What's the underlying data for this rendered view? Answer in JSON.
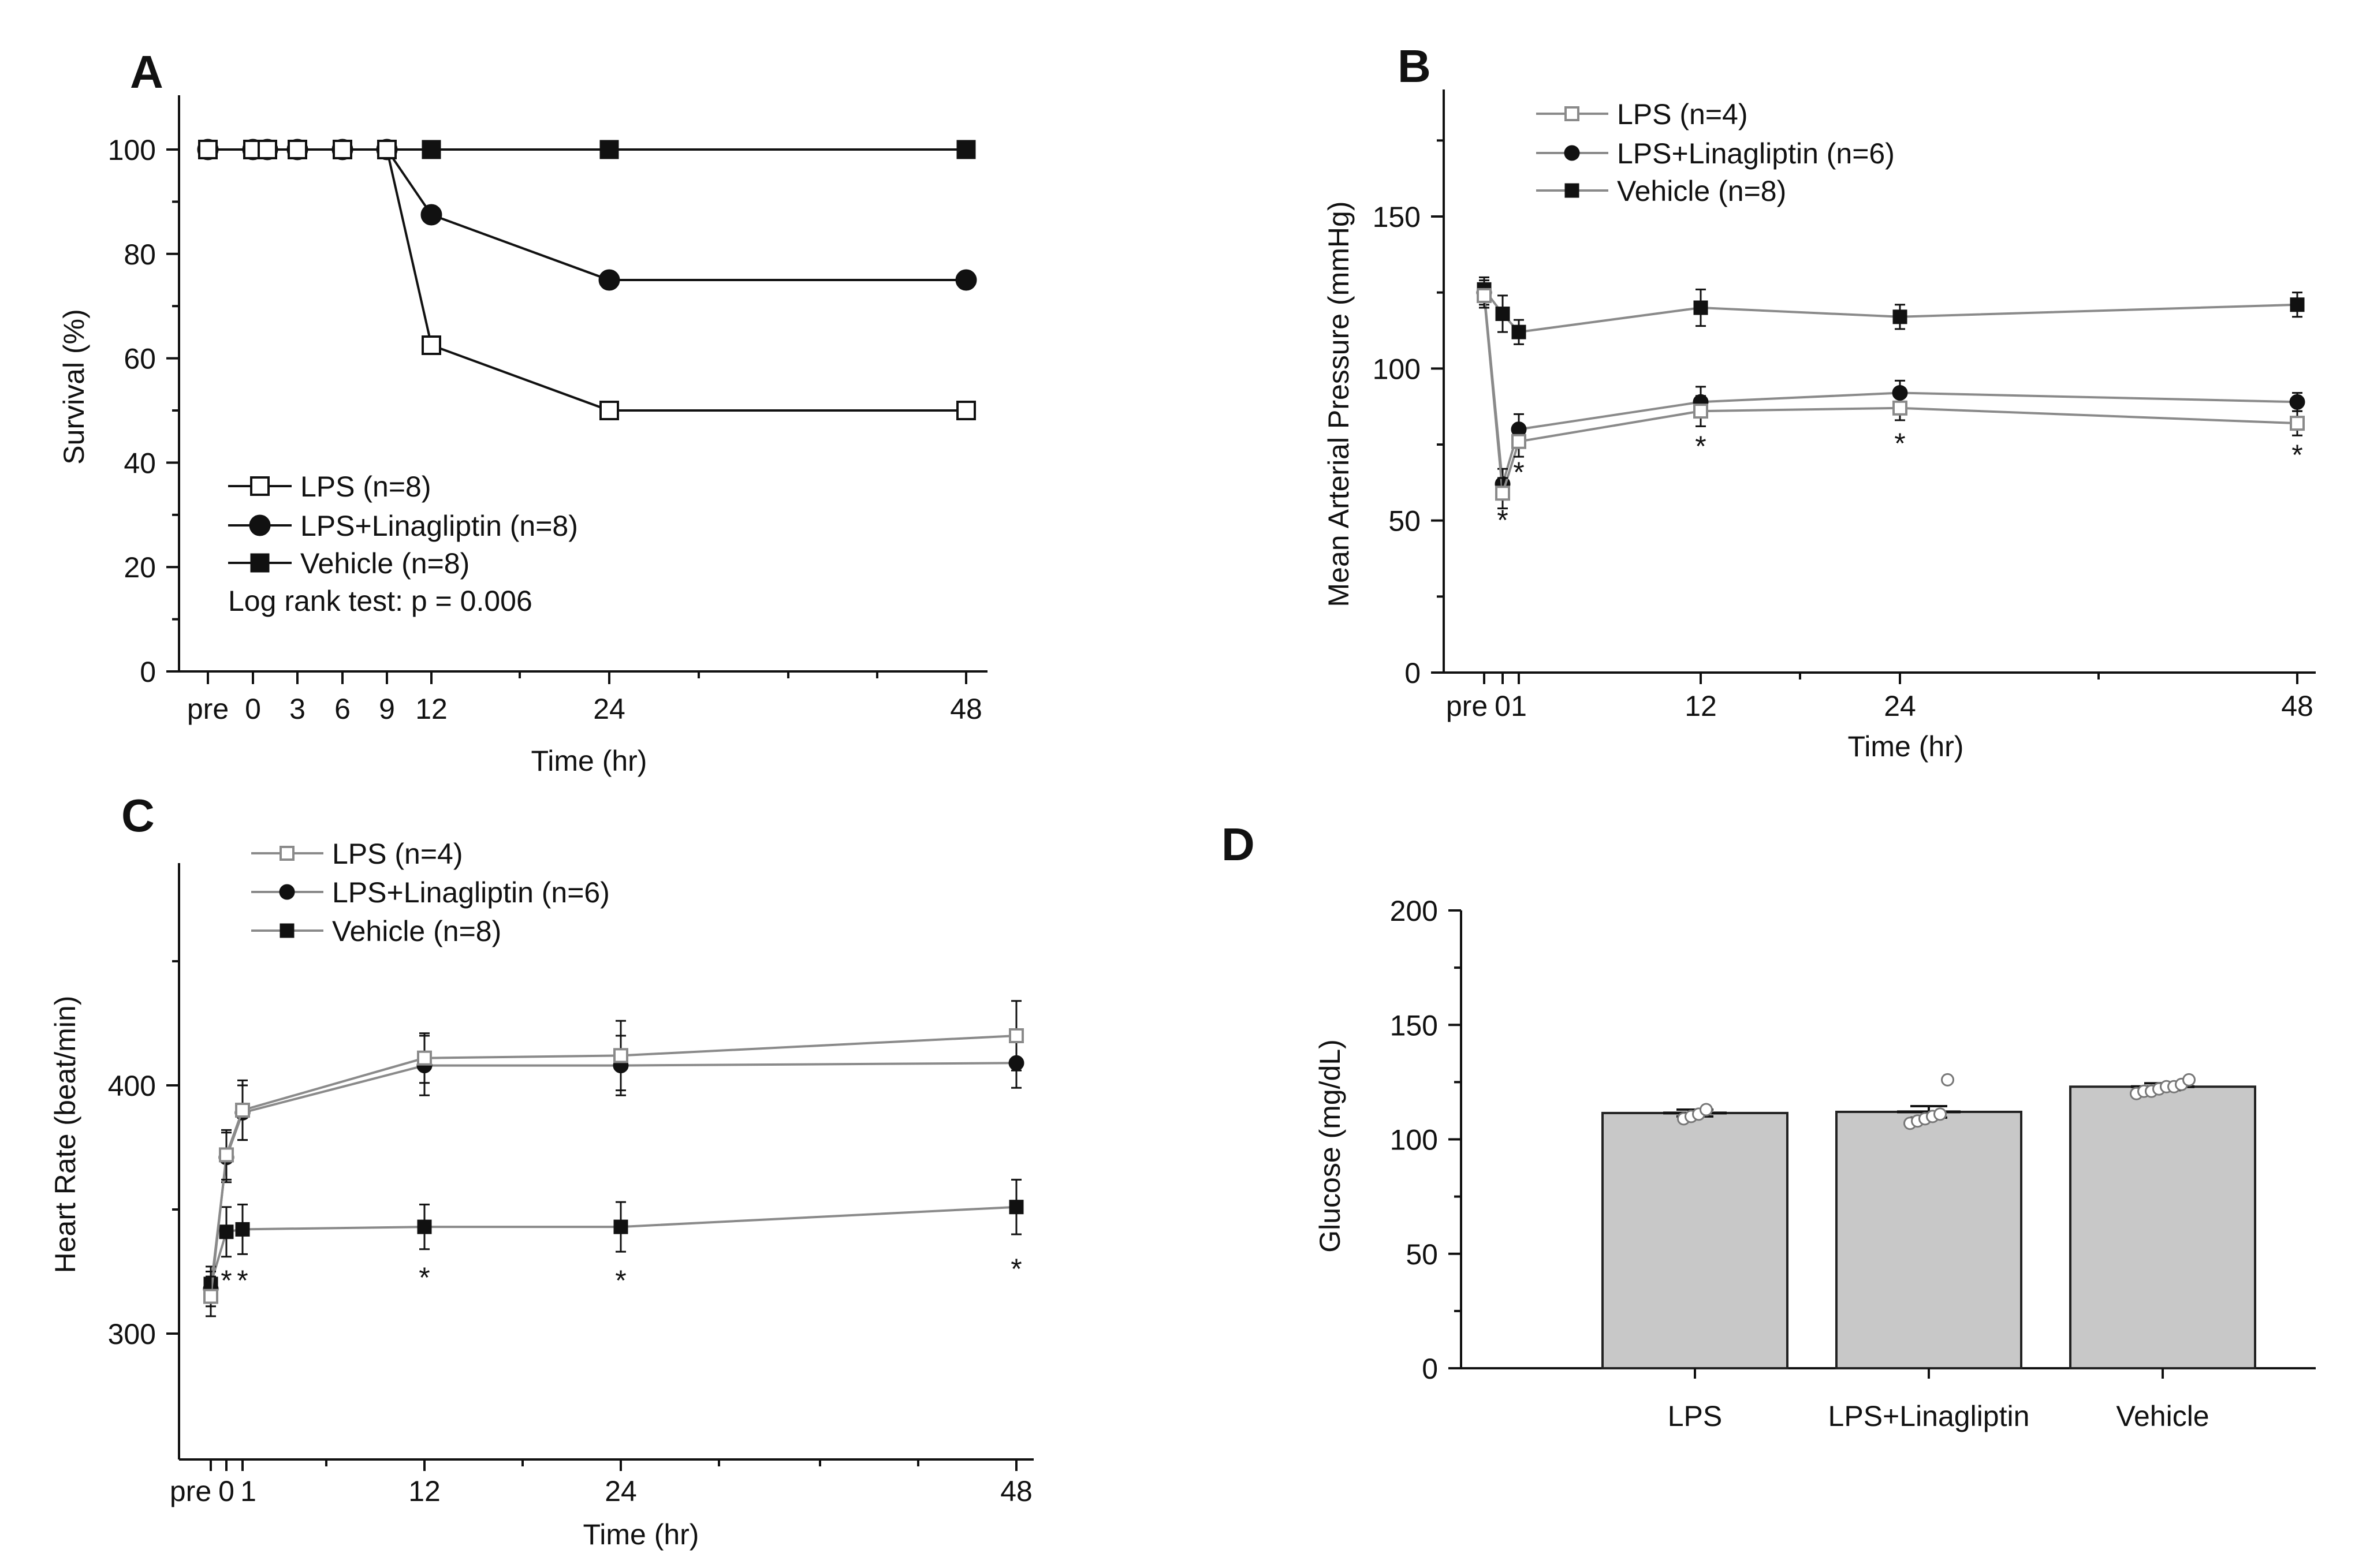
{
  "colors": {
    "black": "#111111",
    "gray_line": "#8a8a8a",
    "bar_fill": "#c8c8c8",
    "bar_stroke": "#222222"
  },
  "chart_data": [
    {
      "panel": "A",
      "type": "line",
      "title": "",
      "xlabel": "Time (hr)",
      "ylabel": "Survival (%)",
      "ylim": [
        0,
        110
      ],
      "yticks": [
        0,
        20,
        40,
        60,
        80,
        100
      ],
      "x_tick_labels": [
        "pre",
        "0",
        "3",
        "6",
        "9",
        "12",
        "24",
        "48"
      ],
      "annotation": "Log rank test: p = 0.006",
      "series": [
        {
          "name": "LPS (n=8)",
          "marker": "open-square",
          "x": [
            "pre",
            "0",
            "1",
            "3",
            "6",
            "9",
            "12",
            "24",
            "48"
          ],
          "values": [
            100,
            100,
            100,
            100,
            100,
            100,
            62.5,
            50,
            50
          ]
        },
        {
          "name": "LPS+Linagliptin (n=8)",
          "marker": "filled-circle",
          "x": [
            "pre",
            "0",
            "1",
            "3",
            "6",
            "9",
            "12",
            "24",
            "48"
          ],
          "values": [
            100,
            100,
            100,
            100,
            100,
            100,
            87.5,
            75,
            75
          ]
        },
        {
          "name": "Vehicle (n=8)",
          "marker": "filled-square",
          "x": [
            "pre",
            "0",
            "1",
            "3",
            "6",
            "9",
            "12",
            "24",
            "48"
          ],
          "values": [
            100,
            100,
            100,
            100,
            100,
            100,
            100,
            100,
            100
          ]
        }
      ]
    },
    {
      "panel": "B",
      "type": "line",
      "title": "",
      "xlabel": "Time (hr)",
      "ylabel": "Mean Arterial Pressure (mmHg)",
      "ylim": [
        0,
        190
      ],
      "yticks": [
        0,
        50,
        100,
        150
      ],
      "x_tick_labels": [
        "pre",
        "0",
        "1",
        "12",
        "24",
        "48"
      ],
      "significance": [
        "*",
        "*",
        "*",
        "*",
        "*"
      ],
      "series": [
        {
          "name": "LPS (n=4)",
          "marker": "open-square",
          "x": [
            "pre",
            "0",
            "1",
            "12",
            "24",
            "48"
          ],
          "values": [
            124,
            59,
            76,
            86,
            87,
            82
          ],
          "err": [
            4,
            5,
            5,
            5,
            4,
            4
          ]
        },
        {
          "name": "LPS+Linagliptin (n=6)",
          "marker": "filled-circle",
          "x": [
            "pre",
            "0",
            "1",
            "12",
            "24",
            "48"
          ],
          "values": [
            125,
            62,
            80,
            89,
            92,
            89
          ],
          "err": [
            4,
            5,
            5,
            5,
            4,
            3
          ]
        },
        {
          "name": "Vehicle (n=8)",
          "marker": "filled-square",
          "x": [
            "pre",
            "0",
            "1",
            "12",
            "24",
            "48"
          ],
          "values": [
            126,
            118,
            112,
            120,
            117,
            121
          ],
          "err": [
            4,
            6,
            4,
            6,
            4,
            4
          ]
        }
      ]
    },
    {
      "panel": "C",
      "type": "line",
      "title": "",
      "xlabel": "Time (hr)",
      "ylabel": "Heart Rate (beat/min)",
      "ylim": [
        250,
        490
      ],
      "yticks": [
        300,
        400
      ],
      "x_tick_labels": [
        "pre",
        "0",
        "1",
        "12",
        "24",
        "48"
      ],
      "significance": [
        "*",
        "*",
        "*",
        "*",
        "*"
      ],
      "series": [
        {
          "name": "LPS (n=4)",
          "marker": "open-square",
          "x": [
            "pre",
            "0",
            "1",
            "12",
            "24",
            "48"
          ],
          "values": [
            315,
            372,
            390,
            411,
            412,
            420
          ],
          "err": [
            8,
            10,
            12,
            10,
            14,
            14
          ]
        },
        {
          "name": "LPS+Linagliptin (n=6)",
          "marker": "filled-circle",
          "x": [
            "pre",
            "0",
            "1",
            "12",
            "24",
            "48"
          ],
          "values": [
            318,
            371,
            389,
            408,
            408,
            409
          ],
          "err": [
            7,
            10,
            11,
            12,
            12,
            10
          ]
        },
        {
          "name": "Vehicle (n=8)",
          "marker": "filled-square",
          "x": [
            "pre",
            "0",
            "1",
            "12",
            "24",
            "48"
          ],
          "values": [
            320,
            341,
            342,
            343,
            343,
            351
          ],
          "err": [
            7,
            10,
            10,
            9,
            10,
            11
          ]
        }
      ]
    },
    {
      "panel": "D",
      "type": "bar",
      "title": "",
      "xlabel": "",
      "ylabel": "Glucose (mg/dL)",
      "ylim": [
        0,
        200
      ],
      "yticks": [
        0,
        50,
        100,
        150,
        200
      ],
      "categories": [
        "LPS",
        "LPS+Linagliptin",
        "Vehicle"
      ],
      "values": [
        111.5,
        112,
        123
      ],
      "err": [
        1.5,
        2.5,
        1.5
      ],
      "points": [
        [
          109,
          110,
          111,
          113
        ],
        [
          107,
          108,
          109,
          110,
          111,
          126
        ],
        [
          120,
          121,
          121,
          122,
          123,
          123,
          124,
          126
        ]
      ]
    }
  ]
}
